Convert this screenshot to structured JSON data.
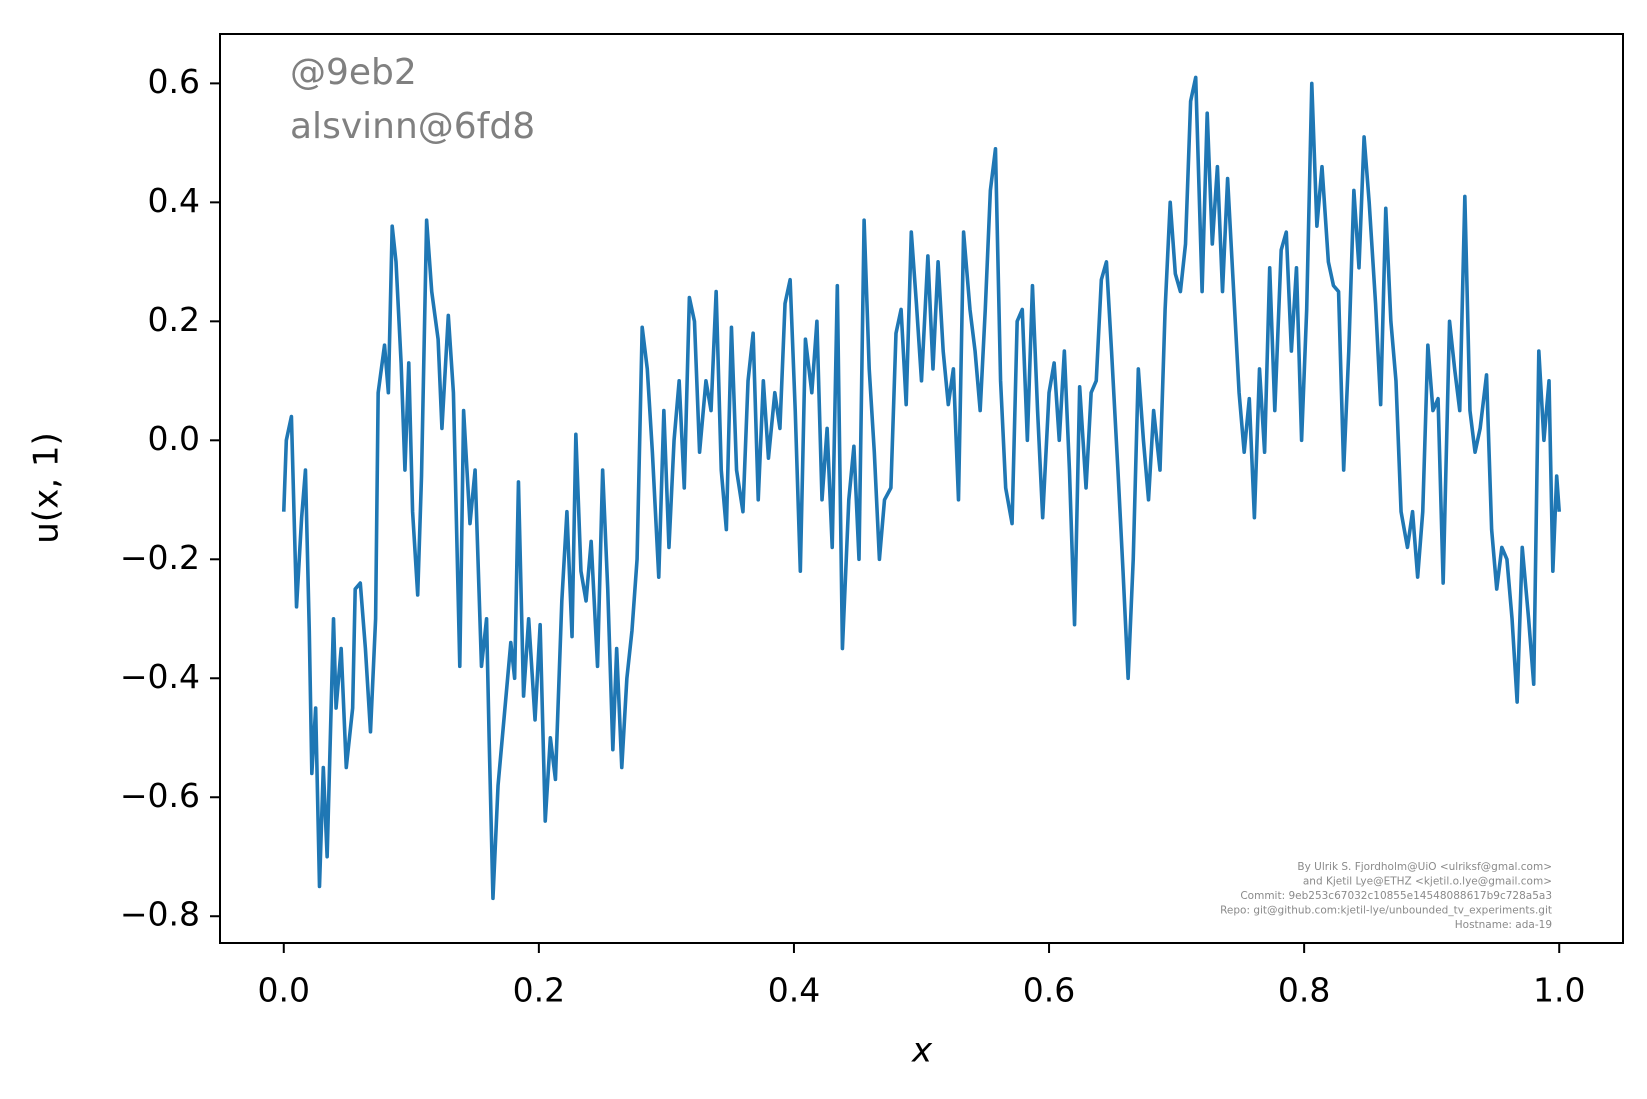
{
  "chart_data": {
    "type": "line",
    "x_label": "x",
    "y_label": "u(x, 1)",
    "color": "#1f77b4",
    "annotations": [
      "@9eb2",
      "alsvinn@6fd8"
    ],
    "footer": [
      "By Ulrik S. Fjordholm@UiO <ulriksf@gmal.com>",
      "and Kjetil Lye@ETHZ <kjetil.o.lye@gmail.com>",
      "Commit: 9eb253c67032c10855e14548088617b9c728a5a3",
      "Repo: git@github.com:kjetil-lye/unbounded_tv_experiments.git",
      "Hostname: ada-19"
    ],
    "xlim": [
      -0.05,
      1.05
    ],
    "ylim": [
      -0.845,
      0.683
    ],
    "xticks": [
      {
        "value": 0,
        "label": "0.0"
      },
      {
        "value": 0.2,
        "label": "0.2"
      },
      {
        "value": 0.4,
        "label": "0.4"
      },
      {
        "value": 0.6,
        "label": "0.6"
      },
      {
        "value": 0.8,
        "label": "0.8"
      },
      {
        "value": 1,
        "label": "1.0"
      }
    ],
    "yticks": [
      {
        "value": -0.8,
        "label": "−0.8"
      },
      {
        "value": -0.6,
        "label": "−0.6"
      },
      {
        "value": -0.4,
        "label": "−0.4"
      },
      {
        "value": -0.2,
        "label": "−0.2"
      },
      {
        "value": 0,
        "label": "0.0"
      },
      {
        "value": 0.2,
        "label": "0.2"
      },
      {
        "value": 0.4,
        "label": "0.4"
      },
      {
        "value": 0.6,
        "label": "0.6"
      }
    ],
    "x": [
      0,
      0.002,
      0.006,
      0.01,
      0.014,
      0.017,
      0.02,
      0.022,
      0.025,
      0.028,
      0.031,
      0.034,
      0.039,
      0.041,
      0.045,
      0.049,
      0.054,
      0.056,
      0.06,
      0.064,
      0.068,
      0.072,
      0.074,
      0.079,
      0.082,
      0.085,
      0.088,
      0.092,
      0.095,
      0.098,
      0.101,
      0.105,
      0.108,
      0.112,
      0.116,
      0.121,
      0.124,
      0.129,
      0.133,
      0.138,
      0.141,
      0.146,
      0.15,
      0.155,
      0.159,
      0.161,
      0.164,
      0.168,
      0.173,
      0.178,
      0.181,
      0.184,
      0.188,
      0.192,
      0.197,
      0.201,
      0.205,
      0.209,
      0.213,
      0.218,
      0.222,
      0.226,
      0.229,
      0.233,
      0.237,
      0.241,
      0.246,
      0.25,
      0.254,
      0.258,
      0.261,
      0.265,
      0.269,
      0.273,
      0.277,
      0.281,
      0.285,
      0.289,
      0.294,
      0.298,
      0.302,
      0.306,
      0.31,
      0.314,
      0.318,
      0.322,
      0.326,
      0.331,
      0.335,
      0.339,
      0.343,
      0.347,
      0.351,
      0.355,
      0.36,
      0.364,
      0.368,
      0.372,
      0.376,
      0.38,
      0.385,
      0.389,
      0.393,
      0.397,
      0.401,
      0.405,
      0.409,
      0.414,
      0.418,
      0.422,
      0.426,
      0.43,
      0.434,
      0.438,
      0.443,
      0.447,
      0.451,
      0.455,
      0.459,
      0.463,
      0.467,
      0.471,
      0.476,
      0.48,
      0.484,
      0.488,
      0.492,
      0.496,
      0.5,
      0.505,
      0.509,
      0.513,
      0.517,
      0.521,
      0.525,
      0.529,
      0.533,
      0.538,
      0.542,
      0.546,
      0.55,
      0.554,
      0.558,
      0.562,
      0.566,
      0.571,
      0.575,
      0.579,
      0.583,
      0.587,
      0.591,
      0.595,
      0.6,
      0.604,
      0.608,
      0.612,
      0.616,
      0.62,
      0.624,
      0.629,
      0.633,
      0.637,
      0.641,
      0.645,
      0.649,
      0.654,
      0.658,
      0.662,
      0.666,
      0.67,
      0.674,
      0.678,
      0.682,
      0.687,
      0.691,
      0.695,
      0.699,
      0.703,
      0.707,
      0.711,
      0.715,
      0.72,
      0.724,
      0.728,
      0.732,
      0.736,
      0.74,
      0.744,
      0.749,
      0.753,
      0.757,
      0.761,
      0.765,
      0.769,
      0.773,
      0.777,
      0.782,
      0.786,
      0.79,
      0.794,
      0.798,
      0.802,
      0.806,
      0.81,
      0.814,
      0.819,
      0.823,
      0.827,
      0.831,
      0.835,
      0.839,
      0.843,
      0.847,
      0.851,
      0.856,
      0.86,
      0.864,
      0.868,
      0.872,
      0.876,
      0.881,
      0.885,
      0.889,
      0.893,
      0.897,
      0.901,
      0.905,
      0.909,
      0.914,
      0.918,
      0.922,
      0.926,
      0.93,
      0.934,
      0.938,
      0.943,
      0.947,
      0.951,
      0.955,
      0.959,
      0.963,
      0.967,
      0.971,
      0.976,
      0.98,
      0.984,
      0.988,
      0.992,
      0.995,
      0.998,
      1
    ],
    "values": [
      -0.12,
      0,
      0.04,
      -0.28,
      -0.13,
      -0.05,
      -0.32,
      -0.56,
      -0.45,
      -0.75,
      -0.55,
      -0.7,
      -0.3,
      -0.45,
      -0.35,
      -0.55,
      -0.45,
      -0.25,
      -0.24,
      -0.35,
      -0.49,
      -0.3,
      0.08,
      0.16,
      0.08,
      0.36,
      0.3,
      0.13,
      -0.05,
      0.13,
      -0.12,
      -0.26,
      -0.06,
      0.37,
      0.25,
      0.17,
      0.02,
      0.21,
      0.08,
      -0.38,
      0.05,
      -0.14,
      -0.05,
      -0.38,
      -0.3,
      -0.5,
      -0.77,
      -0.58,
      -0.46,
      -0.34,
      -0.4,
      -0.07,
      -0.43,
      -0.3,
      -0.47,
      -0.31,
      -0.64,
      -0.5,
      -0.57,
      -0.27,
      -0.12,
      -0.33,
      0.01,
      -0.22,
      -0.27,
      -0.17,
      -0.38,
      -0.05,
      -0.25,
      -0.52,
      -0.35,
      -0.55,
      -0.4,
      -0.32,
      -0.2,
      0.19,
      0.12,
      -0.02,
      -0.23,
      0.05,
      -0.18,
      0,
      0.1,
      -0.08,
      0.24,
      0.2,
      -0.02,
      0.1,
      0.05,
      0.25,
      -0.05,
      -0.15,
      0.19,
      -0.05,
      -0.12,
      0.1,
      0.18,
      -0.1,
      0.1,
      -0.03,
      0.08,
      0.02,
      0.23,
      0.27,
      0.05,
      -0.22,
      0.17,
      0.08,
      0.2,
      -0.1,
      0.02,
      -0.18,
      0.26,
      -0.35,
      -0.1,
      -0.01,
      -0.2,
      0.37,
      0.12,
      -0.02,
      -0.2,
      -0.1,
      -0.08,
      0.18,
      0.22,
      0.06,
      0.35,
      0.23,
      0.1,
      0.31,
      0.12,
      0.3,
      0.15,
      0.06,
      0.12,
      -0.1,
      0.35,
      0.22,
      0.15,
      0.05,
      0.22,
      0.42,
      0.49,
      0.1,
      -0.08,
      -0.14,
      0.2,
      0.22,
      0,
      0.26,
      0.05,
      -0.13,
      0.08,
      0.13,
      0,
      0.15,
      -0.05,
      -0.31,
      0.09,
      -0.08,
      0.08,
      0.1,
      0.27,
      0.3,
      0.15,
      -0.05,
      -0.22,
      -0.4,
      -0.2,
      0.12,
      0,
      -0.1,
      0.05,
      -0.05,
      0.22,
      0.4,
      0.28,
      0.25,
      0.33,
      0.57,
      0.61,
      0.25,
      0.55,
      0.33,
      0.46,
      0.25,
      0.44,
      0.28,
      0.08,
      -0.02,
      0.07,
      -0.13,
      0.12,
      -0.02,
      0.29,
      0.05,
      0.32,
      0.35,
      0.15,
      0.29,
      0,
      0.22,
      0.6,
      0.36,
      0.46,
      0.3,
      0.26,
      0.25,
      -0.05,
      0.15,
      0.42,
      0.29,
      0.51,
      0.4,
      0.23,
      0.06,
      0.39,
      0.2,
      0.1,
      -0.12,
      -0.18,
      -0.12,
      -0.23,
      -0.12,
      0.16,
      0.05,
      0.07,
      -0.24,
      0.2,
      0.12,
      0.05,
      0.41,
      0.05,
      -0.02,
      0.02,
      0.11,
      -0.15,
      -0.25,
      -0.18,
      -0.2,
      -0.3,
      -0.44,
      -0.18,
      -0.3,
      -0.41,
      0.15,
      0,
      0.1,
      -0.22,
      -0.06,
      -0.12
    ]
  }
}
